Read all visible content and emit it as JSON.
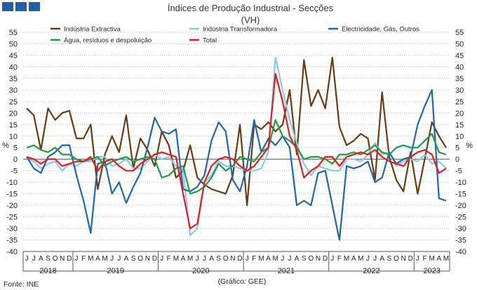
{
  "chart_data": {
    "type": "line",
    "title": "Índices de Produção Industrial - Secções",
    "subtitle": "(VH)",
    "ylabel": "%",
    "ylim": [
      -40,
      55
    ],
    "ytick_step": 5,
    "grid": true,
    "source": "Fonte: INE",
    "credit": "(Gráfico: GEE)",
    "legend_position": "top",
    "x": [
      "J",
      "J",
      "A",
      "S",
      "O",
      "N",
      "D",
      "J",
      "F",
      "M",
      "A",
      "M",
      "J",
      "J",
      "A",
      "S",
      "O",
      "N",
      "D",
      "J",
      "F",
      "M",
      "A",
      "M",
      "J",
      "J",
      "A",
      "S",
      "O",
      "N",
      "D",
      "J",
      "F",
      "M",
      "A",
      "M",
      "J",
      "J",
      "A",
      "S",
      "O",
      "N",
      "D",
      "J",
      "F",
      "M",
      "A",
      "M",
      "J",
      "J",
      "A",
      "S",
      "O",
      "N",
      "D",
      "J",
      "F",
      "M",
      "A",
      "M"
    ],
    "years": [
      {
        "label": "2018",
        "start": 0,
        "end": 6
      },
      {
        "label": "2019",
        "start": 7,
        "end": 18
      },
      {
        "label": "2020",
        "start": 19,
        "end": 30
      },
      {
        "label": "2021",
        "start": 31,
        "end": 42
      },
      {
        "label": "2022",
        "start": 43,
        "end": 54
      },
      {
        "label": "2023",
        "start": 55,
        "end": 59
      }
    ],
    "series": [
      {
        "name": "Indústria Extractiva",
        "color": "#6b3a10",
        "values": [
          22,
          19,
          4,
          22,
          17,
          20,
          21,
          9,
          9,
          15,
          -13,
          2,
          10,
          3,
          19,
          -4,
          9,
          4,
          -3,
          12,
          6,
          -8,
          -5,
          6,
          -8,
          -11,
          -13,
          -14,
          -15,
          -7,
          15,
          -20,
          15,
          13,
          16,
          12,
          15,
          30,
          2,
          43,
          23,
          30,
          22,
          44,
          14,
          6,
          8,
          11,
          9,
          -9,
          29,
          1,
          -9,
          -14,
          3,
          -15,
          0,
          16,
          10,
          5
        ]
      },
      {
        "name": "Indústria Transformadora",
        "color": "#8ec8ea",
        "values": [
          0,
          -1,
          -4,
          -2,
          -1,
          -5,
          -2,
          -3,
          -1,
          -1,
          1,
          1,
          -3,
          -2,
          0,
          -4,
          -4,
          -1,
          2,
          0,
          1,
          -3,
          -5,
          -33,
          -30,
          -10,
          -7,
          -1,
          -3,
          -3,
          -4,
          -5,
          -5,
          -4,
          3,
          44,
          30,
          17,
          7,
          -2,
          -7,
          -3,
          -4,
          -5,
          -5,
          0,
          0,
          -1,
          2,
          7,
          2,
          3,
          -3,
          -1,
          0,
          -1,
          2,
          -2,
          -1,
          -4
        ]
      },
      {
        "name": "Electricidade, Gás, Outros",
        "color": "#1f66b0",
        "values": [
          1,
          -4,
          -6,
          1,
          3,
          6,
          6,
          -7,
          -18,
          -32,
          -2,
          -1,
          -15,
          -10,
          -19,
          -12,
          -6,
          5,
          18,
          12,
          11,
          13,
          -13,
          -14,
          -12,
          -7,
          8,
          16,
          12,
          -9,
          -14,
          -3,
          17,
          3,
          9,
          6,
          10,
          5,
          -20,
          -18,
          -20,
          -6,
          -5,
          -20,
          -35,
          -3,
          -4,
          -3,
          -1,
          -10,
          -8,
          3,
          -2,
          0,
          1,
          15,
          23,
          30,
          -17,
          -18
        ]
      },
      {
        "name": "Água, resíduos e despoluição",
        "color": "#1e9c46",
        "values": [
          5,
          6,
          4,
          3,
          5,
          2,
          2,
          0,
          -1,
          0,
          1,
          -3,
          -1,
          0,
          1,
          -1,
          0,
          1,
          0,
          -8,
          -7,
          -4,
          -3,
          -15,
          -14,
          -12,
          -8,
          -2,
          -5,
          -3,
          1,
          0,
          -1,
          3,
          5,
          17,
          10,
          8,
          5,
          0,
          1,
          1,
          0,
          -2,
          2,
          2,
          3,
          2,
          4,
          6,
          3,
          2,
          5,
          6,
          5,
          5,
          8,
          11,
          3,
          2
        ]
      },
      {
        "name": "Total",
        "color": "#e51c1c",
        "values": [
          1,
          0,
          -2,
          0,
          0,
          -3,
          -2,
          -1,
          -1,
          1,
          -5,
          -1,
          0,
          -3,
          -5,
          -5,
          -2,
          0,
          2,
          3,
          2,
          1,
          -15,
          -30,
          -28,
          -10,
          -3,
          0,
          1,
          0,
          -3,
          -5,
          -3,
          1,
          5,
          37,
          25,
          10,
          4,
          -8,
          -5,
          -3,
          1,
          1,
          -3,
          1,
          2,
          3,
          2,
          4,
          1,
          -1,
          -2,
          -3,
          1,
          3,
          4,
          2,
          -6,
          -4
        ]
      }
    ]
  }
}
